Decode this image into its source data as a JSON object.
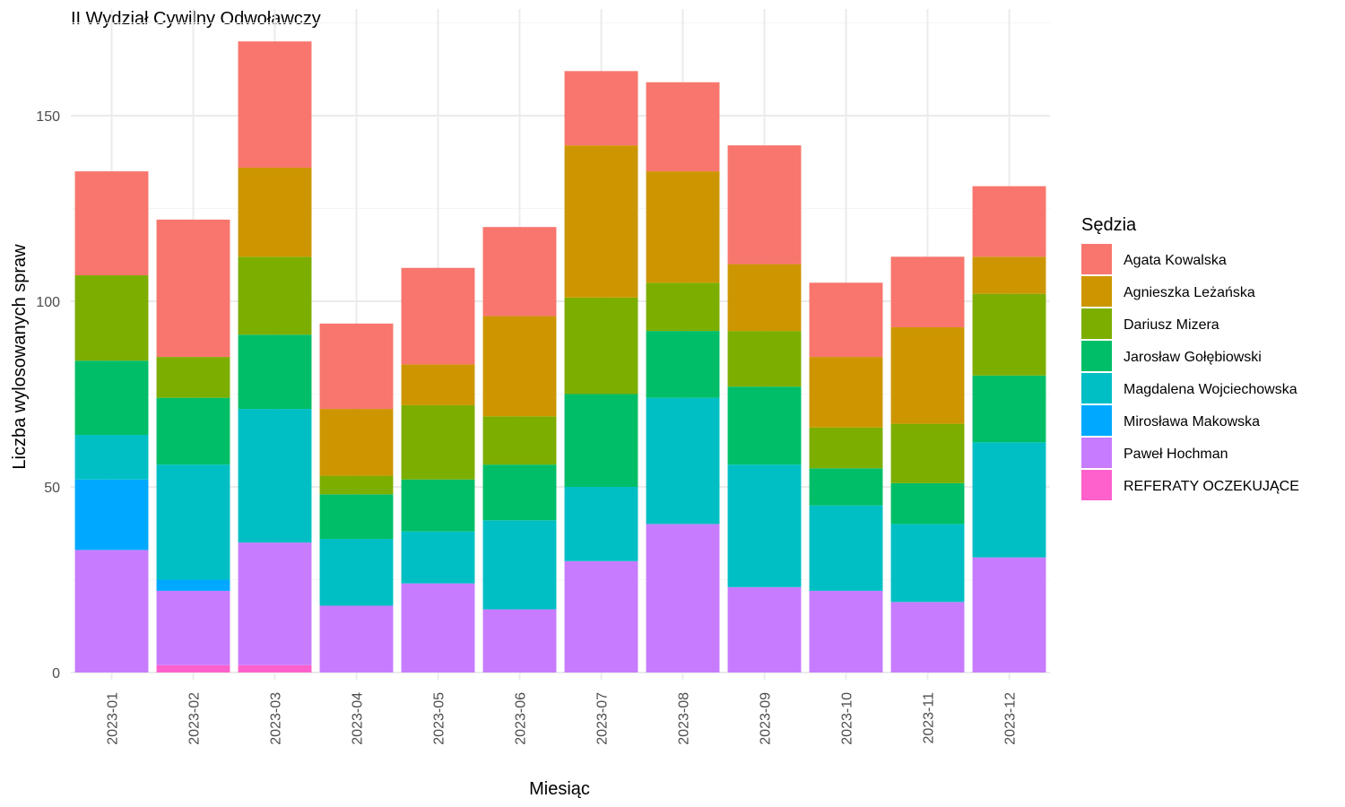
{
  "chart_data": {
    "type": "bar",
    "stacked": true,
    "title": "II Wydział Cywilny Odwoławczy",
    "xlabel": "Miesiąc",
    "ylabel": "Liczba wylosowanych spraw",
    "ylim": [
      0,
      175
    ],
    "yticks": [
      0,
      50,
      100,
      150
    ],
    "grid": true,
    "legend_position": "right",
    "legend_title": "Sędzia",
    "categories": [
      "2023-01",
      "2023-02",
      "2023-03",
      "2023-04",
      "2023-05",
      "2023-06",
      "2023-07",
      "2023-08",
      "2023-09",
      "2023-10",
      "2023-11",
      "2023-12"
    ],
    "series": [
      {
        "name": "REFERATY OCZEKUJĄCE",
        "color": "#FF61CC",
        "values": [
          0,
          2,
          2,
          0,
          0,
          0,
          0,
          0,
          0,
          0,
          0,
          0
        ]
      },
      {
        "name": "Paweł Hochman",
        "color": "#C77CFF",
        "values": [
          33,
          20,
          33,
          18,
          24,
          17,
          30,
          40,
          23,
          22,
          19,
          31
        ]
      },
      {
        "name": "Mirosława Makowska",
        "color": "#00A9FF",
        "values": [
          19,
          3,
          0,
          0,
          0,
          0,
          0,
          0,
          0,
          0,
          0,
          0
        ]
      },
      {
        "name": "Magdalena Wojciechowska",
        "color": "#00BFC4",
        "values": [
          12,
          31,
          36,
          18,
          14,
          24,
          20,
          34,
          33,
          23,
          21,
          31
        ]
      },
      {
        "name": "Jarosław Gołębiowski",
        "color": "#00BE67",
        "values": [
          20,
          18,
          20,
          12,
          14,
          15,
          25,
          18,
          21,
          10,
          11,
          18
        ]
      },
      {
        "name": "Dariusz Mizera",
        "color": "#7CAE00",
        "values": [
          23,
          11,
          21,
          5,
          20,
          13,
          26,
          13,
          15,
          11,
          16,
          22
        ]
      },
      {
        "name": "Agnieszka Leżańska",
        "color": "#CD9600",
        "values": [
          0,
          0,
          24,
          18,
          11,
          27,
          41,
          30,
          18,
          19,
          26,
          10
        ]
      },
      {
        "name": "Agata Kowalska",
        "color": "#F8766D",
        "values": [
          28,
          37,
          34,
          23,
          26,
          24,
          20,
          24,
          32,
          20,
          19,
          19
        ]
      }
    ]
  }
}
